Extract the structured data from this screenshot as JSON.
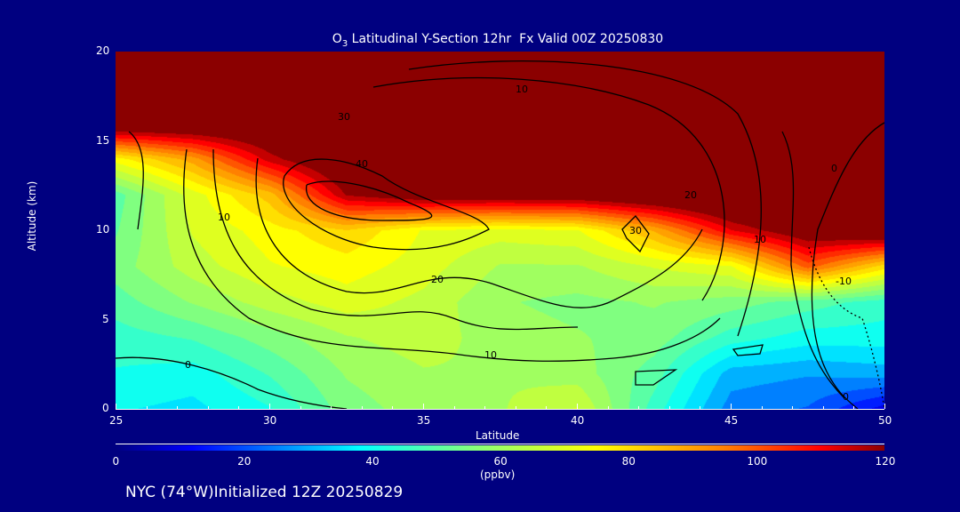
{
  "chart_data": {
    "type": "heatmap",
    "title_main": "O",
    "title_sub": "3",
    "title_rest": " Latitudinal Y-Section 12hr  Fx Valid 00Z 20250830",
    "xlabel": "Latitude",
    "ylabel": "Altitude (km)",
    "xlim": [
      25,
      50
    ],
    "ylim": [
      0,
      20
    ],
    "x_ticks": [
      "25",
      "30",
      "35",
      "40",
      "45",
      "50"
    ],
    "y_ticks": [
      "0",
      "5",
      "10",
      "15",
      "20"
    ],
    "colorbar": {
      "ticks": [
        "0",
        "20",
        "40",
        "60",
        "80",
        "100",
        "120"
      ],
      "range": [
        0,
        120
      ],
      "label": "(ppbv)"
    },
    "grid_lat": [
      25,
      27.5,
      30,
      32.5,
      35,
      37.5,
      40,
      42.5,
      45,
      47.5,
      50
    ],
    "grid_alt": [
      0,
      2,
      4,
      6,
      8,
      10,
      12,
      14,
      16,
      18,
      20
    ],
    "values": [
      [
        38,
        36,
        42,
        55,
        60,
        62,
        68,
        45,
        25,
        22,
        10
      ],
      [
        42,
        40,
        48,
        58,
        62,
        62,
        60,
        50,
        30,
        28,
        30
      ],
      [
        45,
        48,
        55,
        62,
        65,
        60,
        58,
        55,
        45,
        40,
        40
      ],
      [
        50,
        58,
        65,
        70,
        66,
        58,
        56,
        58,
        55,
        50,
        45
      ],
      [
        55,
        65,
        72,
        75,
        70,
        62,
        62,
        68,
        72,
        100,
        80
      ],
      [
        52,
        68,
        75,
        82,
        72,
        70,
        72,
        88,
        112,
        125,
        130
      ],
      [
        50,
        70,
        85,
        118,
        125,
        125,
        125,
        130,
        135,
        140,
        140
      ],
      [
        75,
        90,
        115,
        130,
        135,
        135,
        135,
        140,
        140,
        140,
        140
      ],
      [
        130,
        130,
        130,
        135,
        140,
        140,
        140,
        140,
        140,
        140,
        140
      ],
      [
        135,
        135,
        135,
        140,
        140,
        140,
        140,
        140,
        140,
        140,
        140
      ],
      [
        140,
        140,
        140,
        140,
        140,
        140,
        140,
        140,
        140,
        140,
        140
      ]
    ],
    "contour_labels": [
      "0",
      "10",
      "20",
      "30",
      "40",
      "50",
      "10",
      "20",
      "10",
      "30",
      "10",
      "0",
      "-10",
      "0"
    ]
  },
  "footer": "NYC (74°W)Initialized 12Z 20250829",
  "colors": {
    "background": "#000080"
  }
}
